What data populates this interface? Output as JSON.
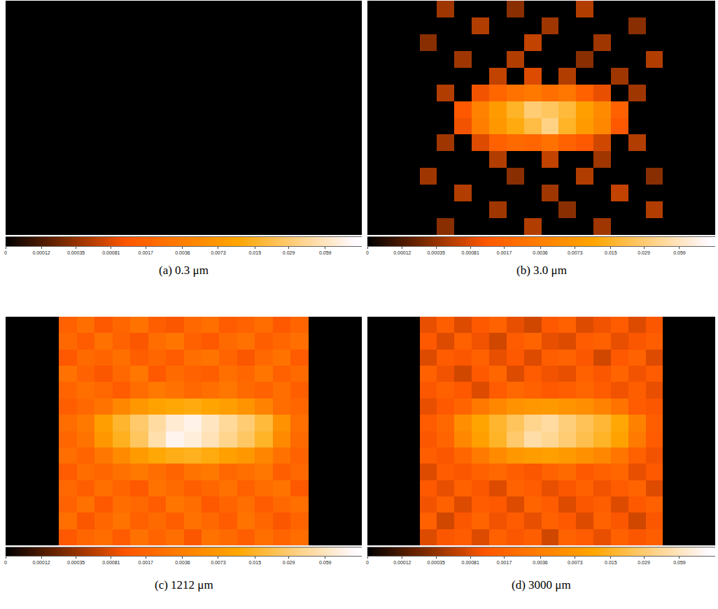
{
  "chart_data": [
    {
      "type": "heatmap",
      "title": "(a) 0.3 μm",
      "color": "heat",
      "log": true,
      "tick_labels": false,
      "zlim": [
        0,
        0.12
      ],
      "zticks": [
        0,
        0.00012,
        0.00035,
        0.00081,
        0.0017,
        0.0036,
        0.0073,
        0.015,
        0.029,
        0.059
      ],
      "z": [
        [
          0,
          0,
          0,
          0,
          0,
          0,
          0,
          0,
          0,
          0,
          0,
          0,
          0,
          0,
          0,
          0,
          0,
          0,
          0,
          0
        ],
        [
          0,
          0,
          0,
          0,
          0,
          0,
          0,
          0,
          0,
          0,
          0,
          0,
          0,
          0,
          0,
          0,
          0,
          0,
          0,
          0
        ],
        [
          0,
          0,
          0,
          0,
          0,
          0,
          0,
          0,
          0,
          0,
          0,
          0,
          0,
          0,
          0,
          0,
          0,
          0,
          0,
          0
        ],
        [
          0,
          0,
          0,
          0,
          0,
          0,
          0,
          0,
          0,
          0,
          0,
          0,
          0,
          0,
          0,
          0,
          0,
          0,
          0,
          0
        ],
        [
          0,
          0,
          0,
          0,
          0,
          0,
          0,
          0,
          0,
          0,
          0,
          0,
          0,
          0,
          0,
          0,
          0,
          0,
          0,
          0
        ],
        [
          0,
          0,
          0,
          0,
          0,
          0,
          0,
          0,
          0,
          0,
          0,
          0,
          0,
          0,
          0,
          0,
          0,
          0,
          0,
          0
        ],
        [
          0,
          0,
          0,
          0,
          0,
          0,
          0,
          0,
          0,
          0,
          0,
          0,
          0,
          0,
          0,
          0,
          0,
          0,
          0,
          0
        ],
        [
          0,
          0,
          0,
          0,
          0,
          0,
          0,
          0,
          0,
          0,
          0,
          0,
          0,
          0,
          0,
          0,
          0,
          0,
          0,
          0
        ],
        [
          0,
          0,
          0,
          0,
          0,
          0,
          0,
          0,
          0,
          0,
          0,
          0,
          0,
          0,
          0,
          0,
          0,
          0,
          0,
          0
        ],
        [
          0,
          0,
          0,
          0,
          0,
          0,
          0,
          0,
          0,
          0,
          0,
          0,
          0,
          0,
          0,
          0,
          0,
          0,
          0,
          0
        ],
        [
          0,
          0,
          0,
          0,
          0,
          0,
          0,
          0,
          0,
          0,
          0,
          0,
          0,
          0,
          0,
          0,
          0,
          0,
          0,
          0
        ],
        [
          0,
          0,
          0,
          0,
          0,
          0,
          0,
          0,
          0,
          0,
          0,
          0,
          0,
          0,
          0,
          0,
          0,
          0,
          0,
          0
        ],
        [
          0,
          0,
          0,
          0,
          0,
          0,
          0,
          0,
          0,
          0,
          0,
          0,
          0,
          0,
          0,
          0,
          0,
          0,
          0,
          0
        ],
        [
          0,
          0,
          0,
          0,
          0,
          0,
          0,
          0,
          0,
          0,
          0,
          0,
          0,
          0,
          0,
          0,
          0,
          0,
          0,
          0
        ]
      ]
    },
    {
      "type": "heatmap",
      "title": "(b) 3.0 μm",
      "color": "heat",
      "log": true,
      "tick_labels": false,
      "zlim": [
        0,
        0.12
      ],
      "zticks": [
        0,
        0.00012,
        0.00035,
        0.00081,
        0.0017,
        0.0036,
        0.0073,
        0.015,
        0.029,
        0.059
      ],
      "z": [
        [
          0,
          0,
          0,
          0,
          0.0004,
          0,
          0,
          0,
          0.0003,
          0,
          0,
          0,
          0.0005,
          0,
          0,
          0,
          0,
          0,
          0,
          0
        ],
        [
          0,
          0,
          0,
          0,
          0,
          0,
          0.0005,
          0,
          0,
          0,
          0.0004,
          0,
          0,
          0,
          0,
          0.0003,
          0,
          0,
          0,
          0
        ],
        [
          0,
          0,
          0,
          0.0003,
          0,
          0,
          0,
          0,
          0,
          0.0006,
          0,
          0,
          0,
          0.0004,
          0,
          0,
          0,
          0,
          0,
          0
        ],
        [
          0,
          0,
          0,
          0,
          0,
          0.0004,
          0,
          0,
          0.0005,
          0,
          0,
          0,
          0.0003,
          0,
          0,
          0,
          0.0005,
          0,
          0,
          0
        ],
        [
          0,
          0,
          0,
          0,
          0,
          0,
          0,
          0.0006,
          0,
          0.0008,
          0,
          0.0005,
          0,
          0,
          0.0004,
          0,
          0,
          0,
          0,
          0
        ],
        [
          0,
          0,
          0,
          0,
          0.0005,
          0,
          0.001,
          0.0018,
          0.0025,
          0.003,
          0.0022,
          0.0028,
          0.0015,
          0.0009,
          0,
          0.0004,
          0,
          0,
          0,
          0
        ],
        [
          0,
          0,
          0,
          0,
          0,
          0.0012,
          0.004,
          0.008,
          0.015,
          0.03,
          0.025,
          0.018,
          0.009,
          0.005,
          0.0015,
          0,
          0,
          0,
          0,
          0
        ],
        [
          0,
          0,
          0,
          0,
          0,
          0.001,
          0.0035,
          0.007,
          0.012,
          0.02,
          0.035,
          0.015,
          0.008,
          0.0045,
          0.0012,
          0,
          0,
          0,
          0,
          0
        ],
        [
          0,
          0,
          0,
          0,
          0.0004,
          0,
          0.0008,
          0.0015,
          0.002,
          0.0018,
          0.0024,
          0.0016,
          0.0012,
          0.0007,
          0,
          0.0005,
          0,
          0,
          0,
          0
        ],
        [
          0,
          0,
          0,
          0,
          0,
          0,
          0,
          0.0005,
          0,
          0,
          0.0006,
          0,
          0,
          0.0004,
          0,
          0,
          0,
          0,
          0,
          0
        ],
        [
          0,
          0,
          0,
          0.0004,
          0,
          0,
          0,
          0,
          0.0003,
          0,
          0,
          0,
          0.0005,
          0,
          0,
          0,
          0.0003,
          0,
          0,
          0
        ],
        [
          0,
          0,
          0,
          0,
          0,
          0.0005,
          0,
          0,
          0,
          0,
          0.0004,
          0,
          0,
          0,
          0.0006,
          0,
          0,
          0,
          0,
          0
        ],
        [
          0,
          0,
          0,
          0,
          0,
          0,
          0,
          0.0004,
          0,
          0,
          0,
          0.0003,
          0,
          0,
          0,
          0,
          0.0005,
          0,
          0,
          0
        ],
        [
          0,
          0,
          0,
          0,
          0.0003,
          0,
          0,
          0,
          0,
          0.0005,
          0,
          0,
          0,
          0.0004,
          0,
          0,
          0,
          0,
          0,
          0
        ]
      ]
    },
    {
      "type": "heatmap",
      "title": "(c) 1212 μm",
      "color": "heat",
      "log": true,
      "tick_labels": false,
      "zlim": [
        0,
        0.12
      ],
      "zticks": [
        0,
        0.00012,
        0.00035,
        0.00081,
        0.0017,
        0.0036,
        0.0073,
        0.015,
        0.029,
        0.059
      ],
      "z": [
        [
          0,
          0,
          0,
          0.0015,
          0.0022,
          0.0012,
          0.0018,
          0.0025,
          0.0014,
          0.0011,
          0.0019,
          0.0023,
          0.0013,
          0.0016,
          0.0021,
          0.0012,
          0.0017,
          0,
          0,
          0
        ],
        [
          0,
          0,
          0,
          0.0019,
          0.0013,
          0.0024,
          0.0016,
          0.0011,
          0.0021,
          0.0027,
          0.0015,
          0.0012,
          0.002,
          0.0024,
          0.0014,
          0.0018,
          0.0022,
          0,
          0,
          0
        ],
        [
          0,
          0,
          0,
          0.0012,
          0.002,
          0.0017,
          0.0023,
          0.0014,
          0.0018,
          0.0013,
          0.0022,
          0.0026,
          0.0017,
          0.0011,
          0.0019,
          0.0025,
          0.0013,
          0,
          0,
          0
        ],
        [
          0,
          0,
          0,
          0.0024,
          0.0016,
          0.0011,
          0.0019,
          0.0028,
          0.0012,
          0.002,
          0.0016,
          0.0014,
          0.0023,
          0.0018,
          0.0027,
          0.0015,
          0.002,
          0,
          0,
          0
        ],
        [
          0,
          0,
          0,
          0.0017,
          0.0023,
          0.0019,
          0.0013,
          0.0021,
          0.003,
          0.0024,
          0.0019,
          0.0022,
          0.0028,
          0.002,
          0.0016,
          0.0022,
          0.0014,
          0,
          0,
          0
        ],
        [
          0,
          0,
          0,
          0.0014,
          0.0019,
          0.0026,
          0.0045,
          0.007,
          0.0095,
          0.011,
          0.012,
          0.01,
          0.0085,
          0.0062,
          0.004,
          0.0021,
          0.0018,
          0,
          0,
          0
        ],
        [
          0,
          0,
          0,
          0.0021,
          0.003,
          0.0085,
          0.016,
          0.028,
          0.045,
          0.07,
          0.085,
          0.06,
          0.042,
          0.03,
          0.018,
          0.006,
          0.0023,
          0,
          0,
          0
        ],
        [
          0,
          0,
          0,
          0.0018,
          0.0026,
          0.007,
          0.014,
          0.025,
          0.05,
          0.09,
          0.075,
          0.055,
          0.038,
          0.026,
          0.015,
          0.005,
          0.002,
          0,
          0,
          0
        ],
        [
          0,
          0,
          0,
          0.0022,
          0.0017,
          0.0028,
          0.005,
          0.008,
          0.011,
          0.013,
          0.014,
          0.012,
          0.009,
          0.007,
          0.0042,
          0.0024,
          0.0016,
          0,
          0,
          0
        ],
        [
          0,
          0,
          0,
          0.0013,
          0.0021,
          0.0018,
          0.0024,
          0.003,
          0.0022,
          0.0017,
          0.0026,
          0.0031,
          0.0019,
          0.0023,
          0.0028,
          0.0014,
          0.0019,
          0,
          0,
          0
        ],
        [
          0,
          0,
          0,
          0.0019,
          0.0014,
          0.0023,
          0.0017,
          0.0012,
          0.0025,
          0.002,
          0.0014,
          0.0018,
          0.0024,
          0.0015,
          0.0021,
          0.0026,
          0.0012,
          0,
          0,
          0
        ],
        [
          0,
          0,
          0,
          0.0016,
          0.0024,
          0.0012,
          0.0021,
          0.0019,
          0.0013,
          0.0027,
          0.0021,
          0.0012,
          0.0017,
          0.0022,
          0.0013,
          0.0019,
          0.0023,
          0,
          0,
          0
        ],
        [
          0,
          0,
          0,
          0.0023,
          0.0011,
          0.0018,
          0.0026,
          0.0015,
          0.002,
          0.0014,
          0.0024,
          0.0019,
          0.0013,
          0.0026,
          0.0018,
          0.0011,
          0.0017,
          0,
          0,
          0
        ],
        [
          0,
          0,
          0,
          0.0012,
          0.0018,
          0.0021,
          0.0013,
          0.0024,
          0.0017,
          0.0022,
          0.0011,
          0.0025,
          0.002,
          0.0014,
          0.0023,
          0.0017,
          0.0021,
          0,
          0,
          0
        ]
      ]
    },
    {
      "type": "heatmap",
      "title": "(d) 3000 μm",
      "color": "heat",
      "log": true,
      "tick_labels": false,
      "zlim": [
        0,
        0.12
      ],
      "zticks": [
        0,
        0.00012,
        0.00035,
        0.00081,
        0.0017,
        0.0036,
        0.0073,
        0.015,
        0.029,
        0.059
      ],
      "z": [
        [
          0,
          0,
          0,
          0.0009,
          0.0014,
          0.0008,
          0.0012,
          0.0016,
          0.0009,
          0.0007,
          0.0012,
          0.0015,
          0.0008,
          0.001,
          0.0013,
          0.0008,
          0.0011,
          0,
          0,
          0
        ],
        [
          0,
          0,
          0,
          0.0012,
          0.0008,
          0.0015,
          0.001,
          0.0007,
          0.0013,
          0.0017,
          0.0009,
          0.0008,
          0.0013,
          0.0015,
          0.0009,
          0.0011,
          0.0014,
          0,
          0,
          0
        ],
        [
          0,
          0,
          0,
          0.0008,
          0.0013,
          0.0011,
          0.0015,
          0.0009,
          0.0012,
          0.0008,
          0.0014,
          0.0016,
          0.0011,
          0.0007,
          0.0012,
          0.0016,
          0.0008,
          0,
          0,
          0
        ],
        [
          0,
          0,
          0,
          0.0015,
          0.001,
          0.0007,
          0.0012,
          0.0018,
          0.0008,
          0.0013,
          0.001,
          0.0009,
          0.0015,
          0.0011,
          0.0017,
          0.001,
          0.0013,
          0,
          0,
          0
        ],
        [
          0,
          0,
          0,
          0.0011,
          0.0015,
          0.0012,
          0.0008,
          0.0013,
          0.0019,
          0.0015,
          0.0012,
          0.0014,
          0.0018,
          0.0013,
          0.001,
          0.0014,
          0.0009,
          0,
          0,
          0
        ],
        [
          0,
          0,
          0,
          0.0009,
          0.0012,
          0.0017,
          0.003,
          0.0045,
          0.006,
          0.007,
          0.0075,
          0.0065,
          0.0055,
          0.004,
          0.0026,
          0.0013,
          0.0011,
          0,
          0,
          0
        ],
        [
          0,
          0,
          0,
          0.0013,
          0.0019,
          0.0055,
          0.01,
          0.016,
          0.024,
          0.038,
          0.045,
          0.032,
          0.023,
          0.017,
          0.011,
          0.0038,
          0.0014,
          0,
          0,
          0
        ],
        [
          0,
          0,
          0,
          0.0011,
          0.0017,
          0.0045,
          0.009,
          0.015,
          0.028,
          0.048,
          0.04,
          0.03,
          0.021,
          0.015,
          0.0095,
          0.0032,
          0.0013,
          0,
          0,
          0
        ],
        [
          0,
          0,
          0,
          0.0014,
          0.0011,
          0.0018,
          0.0032,
          0.005,
          0.007,
          0.0082,
          0.0088,
          0.0075,
          0.0058,
          0.0045,
          0.0027,
          0.0015,
          0.001,
          0,
          0,
          0
        ],
        [
          0,
          0,
          0,
          0.0008,
          0.0013,
          0.0011,
          0.0015,
          0.0019,
          0.0014,
          0.0011,
          0.0016,
          0.002,
          0.0012,
          0.0015,
          0.0018,
          0.0009,
          0.0012,
          0,
          0,
          0
        ],
        [
          0,
          0,
          0,
          0.0012,
          0.0009,
          0.0015,
          0.0011,
          0.0008,
          0.0016,
          0.0013,
          0.0009,
          0.0011,
          0.0015,
          0.001,
          0.0013,
          0.0017,
          0.0008,
          0,
          0,
          0
        ],
        [
          0,
          0,
          0,
          0.001,
          0.0015,
          0.0008,
          0.0013,
          0.0012,
          0.0008,
          0.0017,
          0.0013,
          0.0008,
          0.0011,
          0.0014,
          0.0008,
          0.0012,
          0.0015,
          0,
          0,
          0
        ],
        [
          0,
          0,
          0,
          0.0015,
          0.0007,
          0.0011,
          0.0017,
          0.001,
          0.0013,
          0.0009,
          0.0015,
          0.0012,
          0.0008,
          0.0016,
          0.0011,
          0.0007,
          0.0011,
          0,
          0,
          0
        ],
        [
          0,
          0,
          0,
          0.0008,
          0.0011,
          0.0013,
          0.0008,
          0.0015,
          0.0011,
          0.0014,
          0.0007,
          0.0016,
          0.0013,
          0.0009,
          0.0015,
          0.0011,
          0.0014,
          0,
          0,
          0
        ]
      ]
    }
  ]
}
